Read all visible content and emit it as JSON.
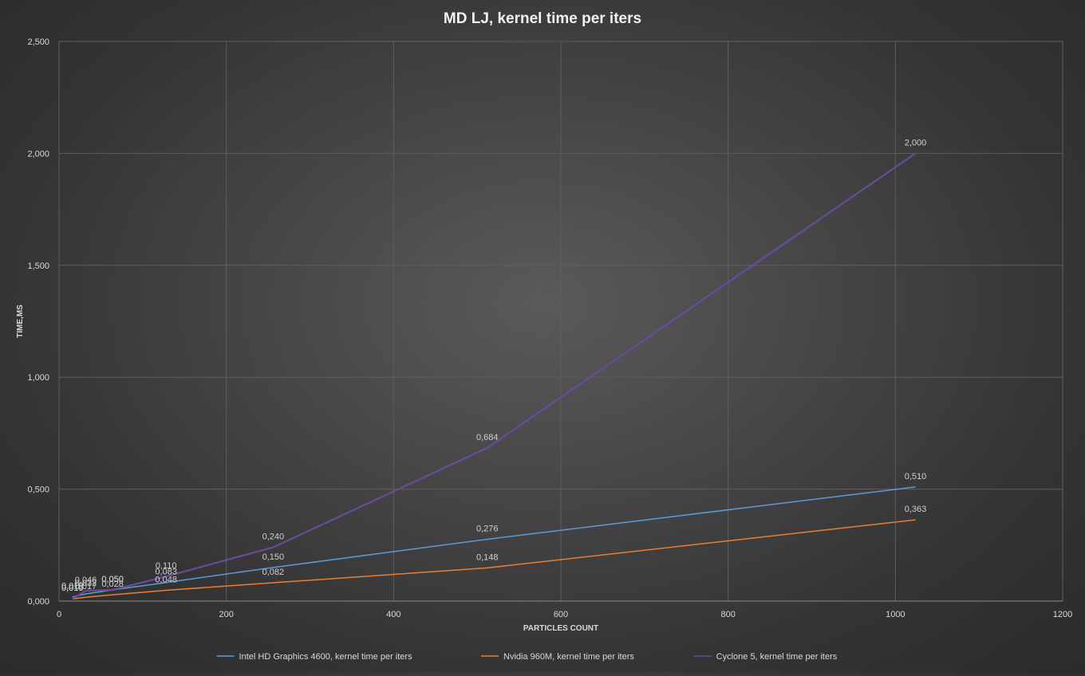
{
  "chart_data": {
    "type": "line",
    "title": "MD LJ, kernel time per iters",
    "xlabel": "PARTICLES COUNT",
    "ylabel": "TIME,MS",
    "xlim": [
      0,
      1200
    ],
    "ylim": [
      0,
      2.5
    ],
    "x_ticks": [
      0,
      200,
      400,
      600,
      800,
      1000,
      1200
    ],
    "x_tick_labels": [
      "0",
      "200",
      "400",
      "600",
      "800",
      "1000",
      "1200"
    ],
    "y_ticks": [
      0,
      0.5,
      1.0,
      1.5,
      2.0,
      2.5
    ],
    "y_tick_labels": [
      "0,000",
      "0,500",
      "1,000",
      "1,500",
      "2,000",
      "2,500"
    ],
    "grid": true,
    "legend_position": "bottom",
    "series": [
      {
        "name": "Intel HD Graphics 4600, kernel time per iters",
        "color": "#5b9bd5",
        "x": [
          16,
          32,
          64,
          128,
          256,
          512,
          1024
        ],
        "values": [
          0.019,
          0.032,
          0.05,
          0.083,
          0.15,
          0.276,
          0.51
        ],
        "labels": [
          "0,019",
          "0,032",
          "0,050",
          "0,083",
          "0,150",
          "0,276",
          "0,510"
        ]
      },
      {
        "name": "Nvidia 960M, kernel time per iters",
        "color": "#ed7d31",
        "x": [
          16,
          32,
          64,
          128,
          256,
          512,
          1024
        ],
        "values": [
          0.01,
          0.017,
          0.028,
          0.048,
          0.082,
          0.148,
          0.363
        ],
        "labels": [
          "0,010",
          "0,017",
          "0,028",
          "0,048",
          "0,082",
          "0,148",
          "0,363"
        ]
      },
      {
        "name": "Cyclone 5, kernel time per iters",
        "color": "#6a4a9e",
        "x": [
          16,
          32,
          64,
          128,
          256,
          512,
          1024
        ],
        "values": [
          0.01,
          0.046,
          0.05,
          0.11,
          0.24,
          0.684,
          2.0
        ],
        "labels": [
          "0,010",
          "0,046",
          "0,050",
          "0,110",
          "0,240",
          "0,684",
          "2,000"
        ]
      }
    ]
  }
}
